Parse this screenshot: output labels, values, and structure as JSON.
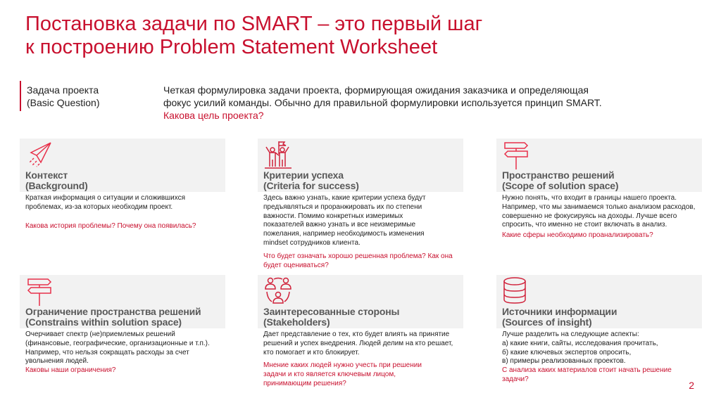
{
  "title": {
    "line1": "Постановка задачи по SMART – это первый шаг",
    "line2": "к построению Problem Statement Worksheet"
  },
  "question": {
    "label1": "Задача проекта",
    "label2": "(Basic Question)",
    "desc1": "Четкая формулировка задачи проекта, формирующая ожидания заказчика и определяющая",
    "desc2": "фокус усилий команды. Обычно для правильной формулировки используется принцип  SMART.",
    "ask": "Какова цель проекта?"
  },
  "accent": "#c8102e",
  "cards": [
    {
      "icon": "paper-plane-icon",
      "h1": "Контекст",
      "h2": "(Background)",
      "body": "Краткая информация  о ситуации  и сложившихся проблемах,  из-за которых  необходим  проект.",
      "q": "Какова история  проблемы?  Почему она появилась?"
    },
    {
      "icon": "people-flag-icon",
      "h1": "Критерии успеха",
      "h2": "(Criteria for success)",
      "body": "Здесь важно узнать,  какие критерии  успеха будут предъявляться  и проранжировать  их по степени важности.  Помимо  конкретных  измеримых показателей  важно узнать и все неизмеримые пожелания,  например  необходимость  изменения mindset сотрудников  клиента.",
      "q": "Что будет означать  хорошо решенная проблема?  Как она будет оцениваться?"
    },
    {
      "icon": "signpost-icon",
      "h1": "Пространство решений",
      "h2": "(Scope of solution space)",
      "body": "Нужно понять,  что  входит  в границы  нашего проекта. Например,  что мы занимаемся  только  анализом расходов, совершенно не фокусируясь на доходы. Лучше всего спросить,  что именно  не стоит  включать  в анализ.",
      "q": "Какие сферы  необходимо  проанализировать?"
    },
    {
      "icon": "signpost-icon",
      "h1": "Ограничение пространства решений",
      "h2": "(Constrains within solution space)",
      "body": "Очерчивает  спектр  (не)приемлемых   решений (финансовые,  географические,  организационные  и т.п.). Например,  что нельзя сокращать расходы за счет  увольнения  людей.",
      "q": "Каковы наши ограничения?"
    },
    {
      "icon": "stakeholders-icon",
      "h1": "Заинтересованные стороны",
      "h2": "(Stakeholders)",
      "body": "Дает представление  о тех,  кто будет влиять  на принятие  решений  и успех внедрения.  Людей делим на кто  решает,  кто  помогает  и кто  блокирует.",
      "q": "Мнение  каких людей  нужно учесть при  решении задачи и кто является  ключевым  лицом, принимающим  решения?"
    },
    {
      "icon": "database-icon",
      "h1": "Источники информации",
      "h2": "(Sources of insight)",
      "lines": [
        "Лучше разделить  на  следующие аспекты:",
        "а) какие  книги,  сайты,  исследования  прочитать,",
        "б)  какие  ключевых  экспертов  опросить,",
        "в) примеры  реализованных  проектов."
      ],
      "q": "С анализа  каких материалов  стоит  начать  решение задачи?"
    }
  ],
  "page_number": "2"
}
